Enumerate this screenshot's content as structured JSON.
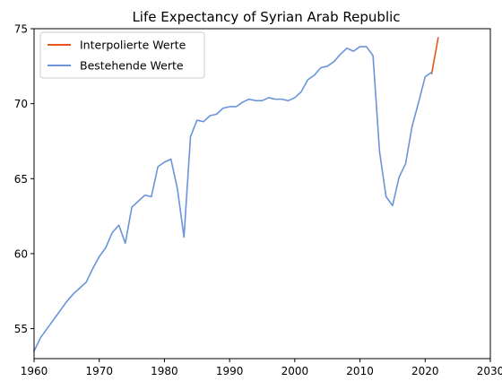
{
  "chart_data": {
    "type": "line",
    "title": "Life Expectancy of Syrian Arab Republic",
    "xlabel": "",
    "ylabel": "",
    "xlim": [
      1960,
      2030
    ],
    "ylim": [
      53,
      75
    ],
    "xticks": [
      1960,
      1970,
      1980,
      1990,
      2000,
      2010,
      2020,
      2030
    ],
    "yticks": [
      55,
      60,
      65,
      70,
      75
    ],
    "grid": false,
    "legend_position": "top-left",
    "series": [
      {
        "name": "Interpolierte Werte",
        "color": "#e8541c",
        "x": [
          2021,
          2022
        ],
        "y": [
          72.0,
          74.4
        ]
      },
      {
        "name": "Bestehende Werte",
        "color": "#6a94da",
        "x": [
          1960,
          1961,
          1962,
          1963,
          1964,
          1965,
          1966,
          1967,
          1968,
          1969,
          1970,
          1971,
          1972,
          1973,
          1974,
          1975,
          1976,
          1977,
          1978,
          1979,
          1980,
          1981,
          1982,
          1983,
          1984,
          1985,
          1986,
          1987,
          1988,
          1989,
          1990,
          1991,
          1992,
          1993,
          1994,
          1995,
          1996,
          1997,
          1998,
          1999,
          2000,
          2001,
          2002,
          2003,
          2004,
          2005,
          2006,
          2007,
          2008,
          2009,
          2010,
          2011,
          2012,
          2013,
          2014,
          2015,
          2016,
          2017,
          2018,
          2019,
          2020,
          2021
        ],
        "y": [
          53.5,
          54.4,
          55.0,
          55.6,
          56.2,
          56.8,
          57.3,
          57.7,
          58.1,
          59.0,
          59.8,
          60.4,
          61.4,
          61.9,
          60.7,
          63.1,
          63.5,
          63.9,
          63.8,
          65.8,
          66.1,
          66.3,
          64.3,
          61.1,
          67.8,
          68.9,
          68.8,
          69.2,
          69.3,
          69.7,
          69.8,
          69.8,
          70.1,
          70.3,
          70.2,
          70.2,
          70.4,
          70.3,
          70.3,
          70.2,
          70.4,
          70.8,
          71.6,
          71.9,
          72.4,
          72.5,
          72.8,
          73.3,
          73.7,
          73.5,
          73.8,
          73.8,
          73.2,
          66.8,
          63.8,
          63.2,
          65.1,
          66.0,
          68.5,
          70.1,
          71.8,
          72.1
        ]
      }
    ]
  }
}
